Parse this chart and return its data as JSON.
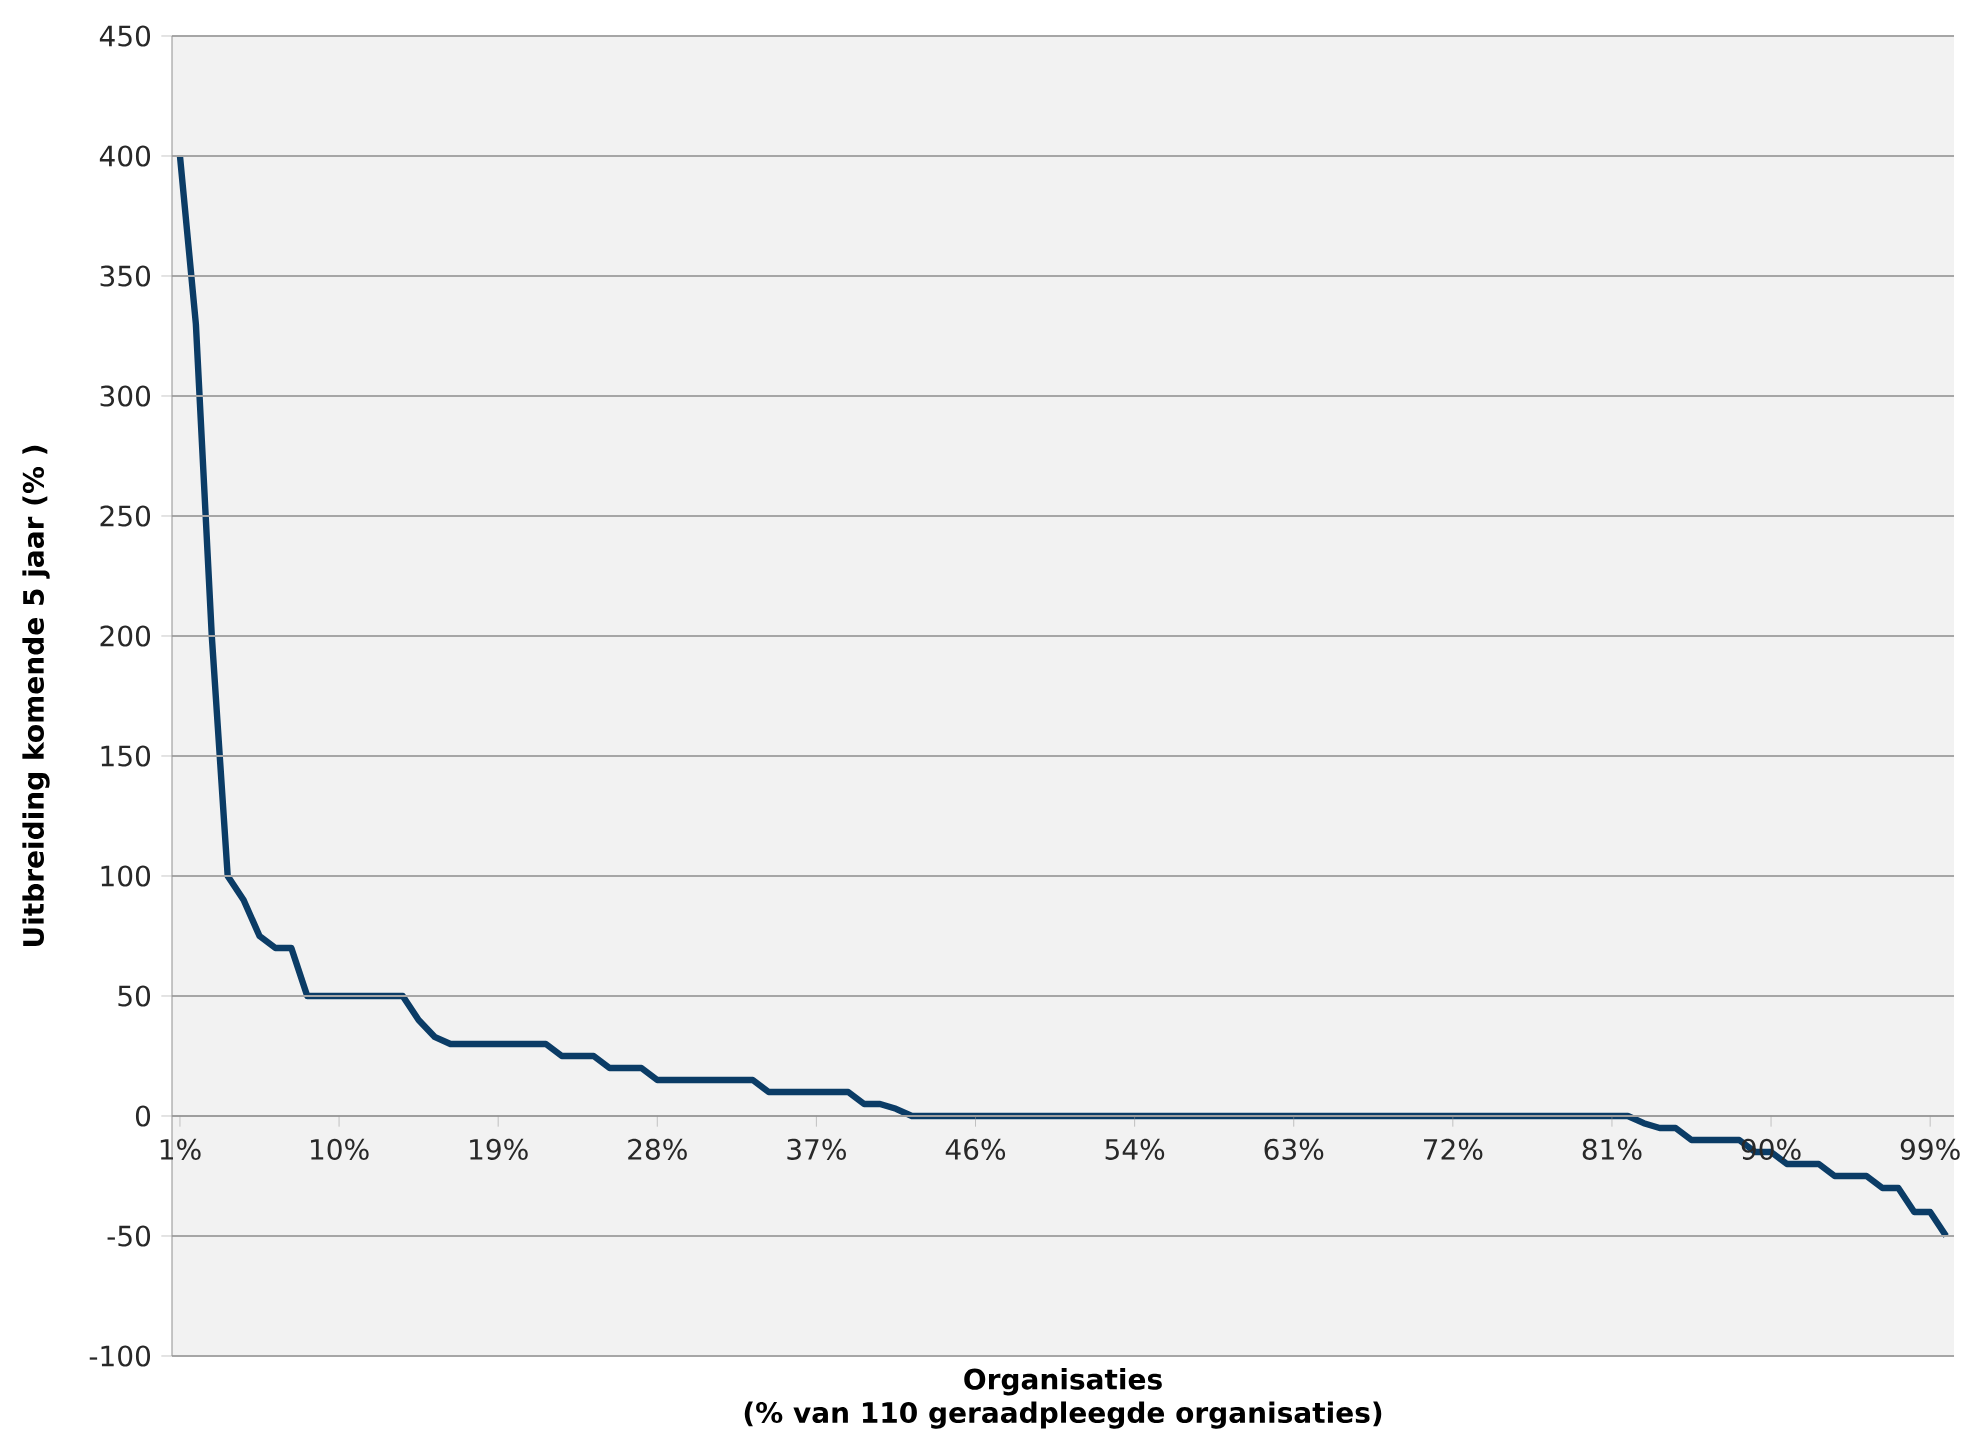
{
  "chart_data": {
    "type": "line",
    "xlabel": "Organisaties\n(% van 110 geraadpleegde organisaties)",
    "ylabel": "Uitbreiding komende 5 jaar (% )",
    "categories": [
      "1%",
      null,
      null,
      null,
      null,
      null,
      null,
      null,
      null,
      null,
      "10%",
      null,
      null,
      null,
      null,
      null,
      null,
      null,
      null,
      null,
      "19%",
      null,
      null,
      null,
      null,
      null,
      null,
      null,
      null,
      null,
      "28%",
      null,
      null,
      null,
      null,
      null,
      null,
      null,
      null,
      null,
      "37%",
      null,
      null,
      null,
      null,
      null,
      null,
      null,
      null,
      null,
      "46%",
      null,
      null,
      null,
      null,
      null,
      null,
      null,
      null,
      null,
      "54%",
      null,
      null,
      null,
      null,
      null,
      null,
      null,
      null,
      null,
      "63%",
      null,
      null,
      null,
      null,
      null,
      null,
      null,
      null,
      null,
      "72%",
      null,
      null,
      null,
      null,
      null,
      null,
      null,
      null,
      null,
      "81%",
      null,
      null,
      null,
      null,
      null,
      null,
      null,
      null,
      null,
      "90%",
      null,
      null,
      null,
      null,
      null,
      null,
      null,
      null,
      null,
      "99%",
      null
    ],
    "series": [
      {
        "color": "#0b3c66",
        "values": [
          400,
          330,
          200,
          100,
          90,
          75,
          70,
          70,
          50,
          50,
          50,
          50,
          50,
          50,
          50,
          40,
          33,
          30,
          30,
          30,
          30,
          30,
          30,
          30,
          25,
          25,
          25,
          20,
          20,
          20,
          15,
          15,
          15,
          15,
          15,
          15,
          15,
          10,
          10,
          10,
          10,
          10,
          10,
          5,
          5,
          3,
          0,
          0,
          0,
          0,
          0,
          0,
          0,
          0,
          0,
          0,
          0,
          0,
          0,
          0,
          0,
          0,
          0,
          0,
          0,
          0,
          0,
          0,
          0,
          0,
          0,
          0,
          0,
          0,
          0,
          0,
          0,
          0,
          0,
          0,
          0,
          0,
          0,
          0,
          0,
          0,
          0,
          0,
          0,
          0,
          0,
          0,
          -3,
          -5,
          -5,
          -10,
          -10,
          -10,
          -10,
          -15,
          -15,
          -20,
          -20,
          -20,
          -25,
          -25,
          -25,
          -30,
          -30,
          -40,
          -40,
          -50
        ]
      }
    ],
    "ylim": [
      -100,
      450
    ],
    "yticks": [
      -100,
      -50,
      0,
      50,
      100,
      150,
      200,
      250,
      300,
      350,
      400,
      450
    ],
    "grid": "y"
  }
}
